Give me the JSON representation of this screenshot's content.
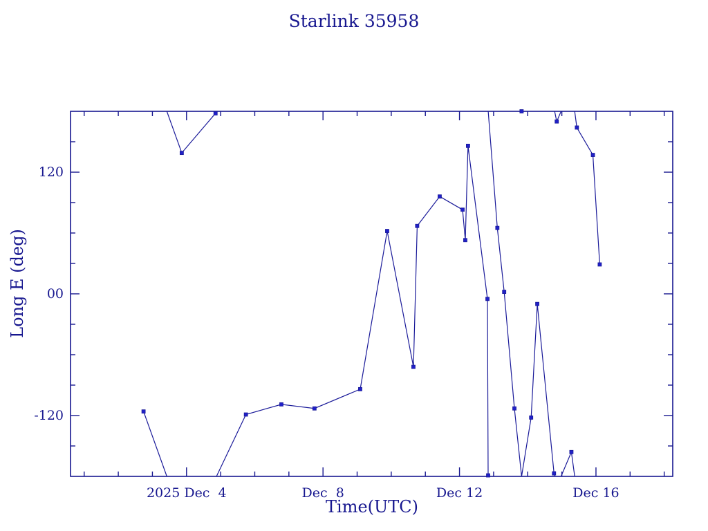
{
  "page": {
    "background": "#ffffff"
  },
  "chart_data": {
    "type": "line",
    "title": "Starlink 35958",
    "xlabel": "Time(UTC)",
    "ylabel": "Long E (deg)",
    "x_unit": "day of December 2025, UTC",
    "xlim": [
      0.6,
      18.25
    ],
    "ylim": [
      -180,
      180
    ],
    "wrap_at": 180,
    "grid": false,
    "legend": "none",
    "axis_color": "#17178f",
    "line_color": "#1a1a99",
    "marker_color": "#2020c8",
    "marker": "square",
    "x_major_ticks": [
      {
        "day": 4,
        "label": "2025 Dec  4"
      },
      {
        "day": 8,
        "label": "Dec  8"
      },
      {
        "day": 12,
        "label": "Dec 12"
      },
      {
        "day": 16,
        "label": "Dec 16"
      }
    ],
    "x_minor_tick_days": [
      1,
      2,
      3,
      5,
      6,
      7,
      9,
      10,
      11,
      13,
      14,
      15,
      17,
      18
    ],
    "y_major_ticks": [
      {
        "value": 120,
        "label": "120"
      },
      {
        "value": 0,
        "label": "00"
      },
      {
        "value": -120,
        "label": "-120"
      }
    ],
    "y_minor_tick_values": [
      -150,
      -90,
      -60,
      -30,
      30,
      60,
      90,
      150
    ],
    "points": [
      {
        "day": 2.74,
        "lon": -116
      },
      {
        "day": 3.86,
        "lon": 139
      },
      {
        "day": 4.85,
        "lon": 178
      },
      {
        "day": 5.74,
        "lon": -119
      },
      {
        "day": 6.78,
        "lon": -109
      },
      {
        "day": 7.75,
        "lon": -113
      },
      {
        "day": 9.09,
        "lon": -94
      },
      {
        "day": 9.88,
        "lon": 62
      },
      {
        "day": 10.65,
        "lon": -72
      },
      {
        "day": 10.76,
        "lon": 67
      },
      {
        "day": 11.42,
        "lon": 96
      },
      {
        "day": 12.09,
        "lon": 83
      },
      {
        "day": 12.17,
        "lon": 53
      },
      {
        "day": 12.25,
        "lon": 146
      },
      {
        "day": 12.82,
        "lon": -5
      },
      {
        "day": 12.84,
        "lon": -179
      },
      {
        "day": 13.11,
        "lon": 65
      },
      {
        "day": 13.31,
        "lon": 2
      },
      {
        "day": 13.61,
        "lon": -113
      },
      {
        "day": 13.82,
        "lon": 180
      },
      {
        "day": 14.1,
        "lon": -122
      },
      {
        "day": 14.28,
        "lon": -10
      },
      {
        "day": 14.77,
        "lon": -177
      },
      {
        "day": 14.85,
        "lon": 170
      },
      {
        "day": 15.28,
        "lon": -156
      },
      {
        "day": 15.44,
        "lon": 164
      },
      {
        "day": 15.91,
        "lon": 137
      },
      {
        "day": 16.11,
        "lon": 29
      }
    ]
  }
}
